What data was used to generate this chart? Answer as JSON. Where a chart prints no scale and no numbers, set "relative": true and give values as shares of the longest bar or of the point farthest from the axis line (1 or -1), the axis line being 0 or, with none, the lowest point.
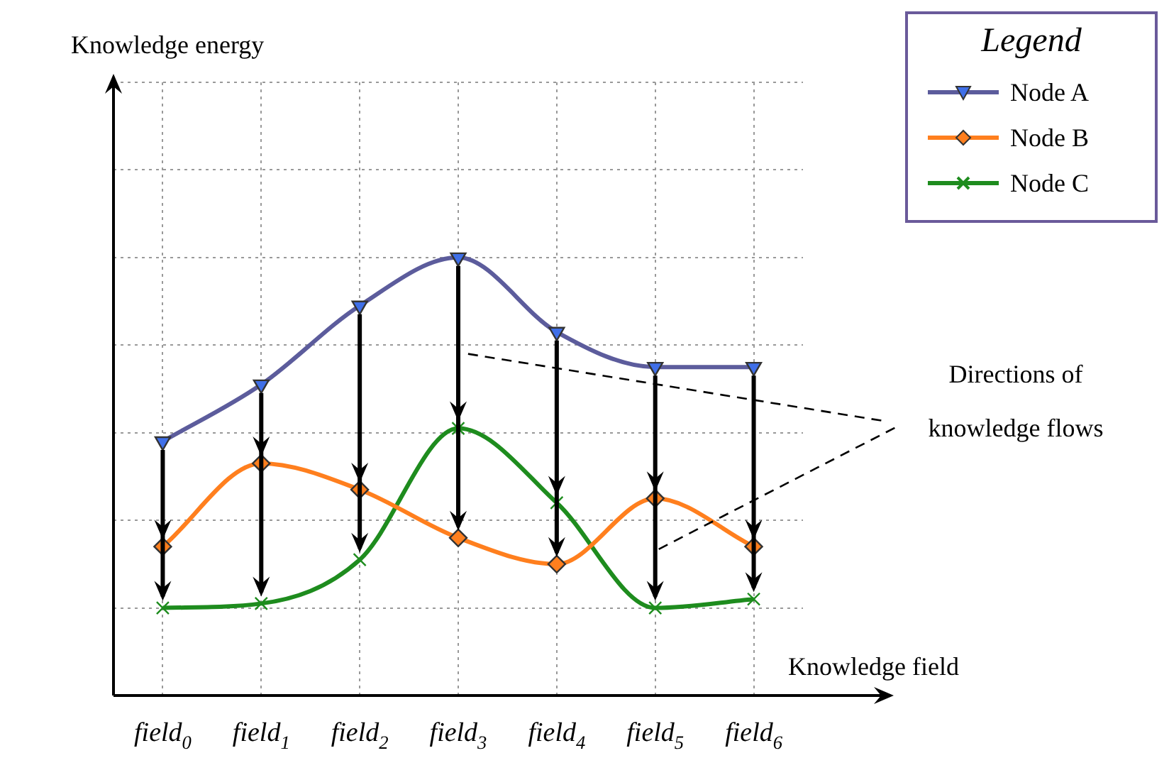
{
  "chart_data": {
    "type": "line",
    "relative": true,
    "xlabel": "Knowledge field",
    "legend_title": "Legend",
    "legend": "top right",
    "grid": true,
    "line_style": "solid",
    "categories": [
      "field$_{0}$",
      "field$_{1}$",
      "field$_{2}$",
      "field$_{3}$",
      "field$_{4}$",
      "field$_{5}$",
      "field$_{6}$"
    ],
    "series": [
      {
        "name": "Node A",
        "color": "#5c5c9c",
        "marker": "triangle",
        "values": [
          0.58,
          0.71,
          0.89,
          1,
          0.83,
          0.75,
          0.75
        ]
      },
      {
        "name": "Node B",
        "color": "#ff7f1e",
        "marker": "diamond",
        "values": [
          0.34,
          0.53,
          0.47,
          0.36,
          0.3,
          0.45,
          0.34
        ]
      },
      {
        "name": "Node C",
        "color": "#1e8c1e",
        "marker": "cross",
        "values": [
          0.2,
          0.21,
          0.31,
          0.61,
          0.44,
          0.2,
          0.22
        ]
      }
    ],
    "annotations": [
      "Knowledge energy",
      "Directions of knowledge flows"
    ]
  }
}
